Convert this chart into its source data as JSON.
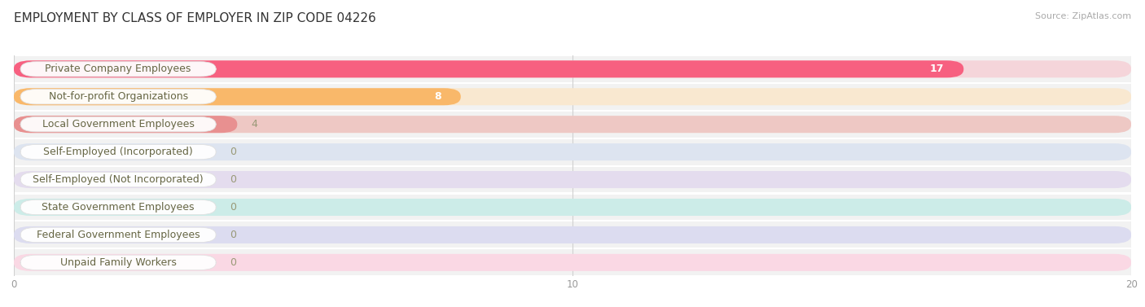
{
  "title": "EMPLOYMENT BY CLASS OF EMPLOYER IN ZIP CODE 04226",
  "source": "Source: ZipAtlas.com",
  "categories": [
    "Private Company Employees",
    "Not-for-profit Organizations",
    "Local Government Employees",
    "Self-Employed (Incorporated)",
    "Self-Employed (Not Incorporated)",
    "State Government Employees",
    "Federal Government Employees",
    "Unpaid Family Workers"
  ],
  "values": [
    17,
    8,
    4,
    0,
    0,
    0,
    0,
    0
  ],
  "bar_colors": [
    "#F76080",
    "#F9B86A",
    "#E89090",
    "#A8B8D8",
    "#C0A8D0",
    "#70C8B8",
    "#A8A8D0",
    "#F8A0B8"
  ],
  "bar_bg_colors": [
    "#F5D5DA",
    "#F9E8D0",
    "#EEC8C4",
    "#DDE4F0",
    "#E4DCEE",
    "#CCECE8",
    "#DCDCF0",
    "#FAD8E4"
  ],
  "label_color": "#666644",
  "value_color_on_bar": "#ffffff",
  "value_color_off_bar": "#999977",
  "xlim": [
    0,
    20
  ],
  "xticks": [
    0,
    10,
    20
  ],
  "background_color": "#ffffff",
  "row_bg_color": "#f2f2f2",
  "row_sep_color": "#ffffff",
  "title_fontsize": 11,
  "label_fontsize": 9,
  "value_fontsize": 9,
  "source_fontsize": 8
}
